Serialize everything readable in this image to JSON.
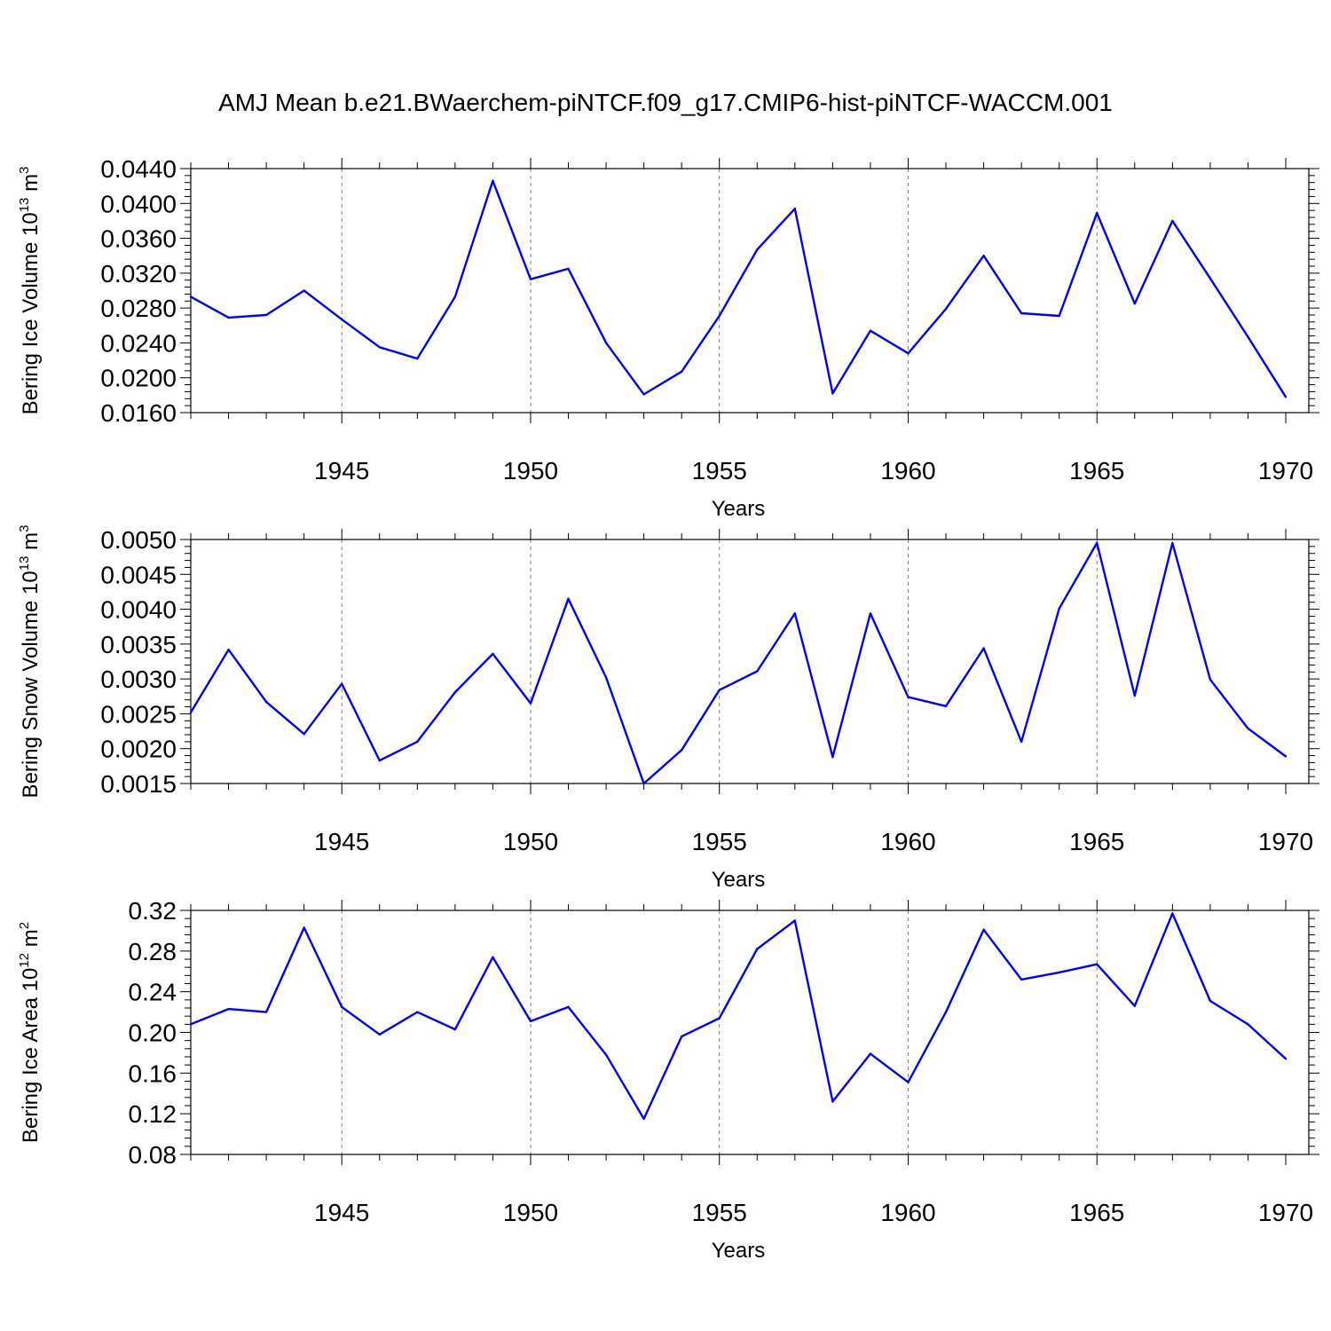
{
  "title": "AMJ Mean b.e21.BWaerchem-piNTCF.f09_g17.CMIP6-hist-piNTCF-WACCM.001",
  "series_color": "#0000ff",
  "chart_data": [
    {
      "type": "line",
      "ylabel": "Bering Ice Volume 10",
      "ylabel_exp": "13",
      "ylabel_unit": " m",
      "ylabel_unit_exp": "3",
      "xlabel": "Years",
      "xlim": [
        1941,
        1970
      ],
      "ylim": [
        0.016,
        0.044
      ],
      "yticks": [
        0.016,
        0.02,
        0.024,
        0.028,
        0.032,
        0.036,
        0.04,
        0.044
      ],
      "ytick_labels": [
        "0.0160",
        "0.0200",
        "0.0240",
        "0.0280",
        "0.0320",
        "0.0360",
        "0.0400",
        "0.0440"
      ],
      "xticks": [
        1945,
        1950,
        1955,
        1960,
        1965,
        1970
      ],
      "xtick_labels": [
        "1945",
        "1950",
        "1955",
        "1960",
        "1965",
        "1970"
      ],
      "x": [
        1941,
        1942,
        1943,
        1944,
        1945,
        1946,
        1947,
        1948,
        1949,
        1950,
        1951,
        1952,
        1953,
        1954,
        1955,
        1956,
        1957,
        1958,
        1959,
        1960,
        1961,
        1962,
        1963,
        1964,
        1965,
        1966,
        1967,
        1968,
        1969,
        1970
      ],
      "values": [
        0.0293,
        0.0269,
        0.0272,
        0.03,
        0.0267,
        0.0235,
        0.0222,
        0.0293,
        0.0426,
        0.0313,
        0.0325,
        0.024,
        0.0181,
        0.0207,
        0.0271,
        0.0347,
        0.0394,
        0.0182,
        0.0254,
        0.0228,
        0.0279,
        0.034,
        0.0274,
        0.0271,
        0.0389,
        0.0285,
        0.038,
        0.0314,
        0.0247,
        0.0178
      ]
    },
    {
      "type": "line",
      "ylabel": "Bering Snow Volume 10",
      "ylabel_exp": "13",
      "ylabel_unit": " m",
      "ylabel_unit_exp": "3",
      "xlabel": "Years",
      "xlim": [
        1941,
        1970
      ],
      "ylim": [
        0.0015,
        0.005
      ],
      "yticks": [
        0.0015,
        0.002,
        0.0025,
        0.003,
        0.0035,
        0.004,
        0.0045,
        0.005
      ],
      "ytick_labels": [
        "0.0015",
        "0.0020",
        "0.0025",
        "0.0030",
        "0.0035",
        "0.0040",
        "0.0045",
        "0.0050"
      ],
      "xticks": [
        1945,
        1950,
        1955,
        1960,
        1965,
        1970
      ],
      "xtick_labels": [
        "1945",
        "1950",
        "1955",
        "1960",
        "1965",
        "1970"
      ],
      "x": [
        1941,
        1942,
        1943,
        1944,
        1945,
        1946,
        1947,
        1948,
        1949,
        1950,
        1951,
        1952,
        1953,
        1954,
        1955,
        1956,
        1957,
        1958,
        1959,
        1960,
        1961,
        1962,
        1963,
        1964,
        1965,
        1966,
        1967,
        1968,
        1969,
        1970
      ],
      "values": [
        0.00252,
        0.00342,
        0.00267,
        0.00221,
        0.00293,
        0.00183,
        0.0021,
        0.00281,
        0.00336,
        0.00265,
        0.00415,
        0.00302,
        0.0015,
        0.00198,
        0.00284,
        0.00311,
        0.00394,
        0.00188,
        0.00394,
        0.00274,
        0.00261,
        0.00344,
        0.0021,
        0.00401,
        0.00495,
        0.00276,
        0.00495,
        0.00299,
        0.00229,
        0.00189
      ]
    },
    {
      "type": "line",
      "ylabel": "Bering Ice Area 10",
      "ylabel_exp": "12",
      "ylabel_unit": " m",
      "ylabel_unit_exp": "2",
      "xlabel": "Years",
      "xlim": [
        1941,
        1970
      ],
      "ylim": [
        0.08,
        0.32
      ],
      "yticks": [
        0.08,
        0.12,
        0.16,
        0.2,
        0.24,
        0.28,
        0.32
      ],
      "ytick_labels": [
        "0.08",
        "0.12",
        "0.16",
        "0.20",
        "0.24",
        "0.28",
        "0.32"
      ],
      "xticks": [
        1945,
        1950,
        1955,
        1960,
        1965,
        1970
      ],
      "xtick_labels": [
        "1945",
        "1950",
        "1955",
        "1960",
        "1965",
        "1970"
      ],
      "x": [
        1941,
        1942,
        1943,
        1944,
        1945,
        1946,
        1947,
        1948,
        1949,
        1950,
        1951,
        1952,
        1953,
        1954,
        1955,
        1956,
        1957,
        1958,
        1959,
        1960,
        1961,
        1962,
        1963,
        1964,
        1965,
        1966,
        1967,
        1968,
        1969,
        1970
      ],
      "values": [
        0.208,
        0.223,
        0.22,
        0.303,
        0.225,
        0.198,
        0.22,
        0.203,
        0.274,
        0.211,
        0.225,
        0.178,
        0.115,
        0.196,
        0.214,
        0.282,
        0.31,
        0.132,
        0.179,
        0.151,
        0.22,
        0.301,
        0.252,
        0.259,
        0.267,
        0.226,
        0.317,
        0.231,
        0.208,
        0.174
      ]
    }
  ]
}
